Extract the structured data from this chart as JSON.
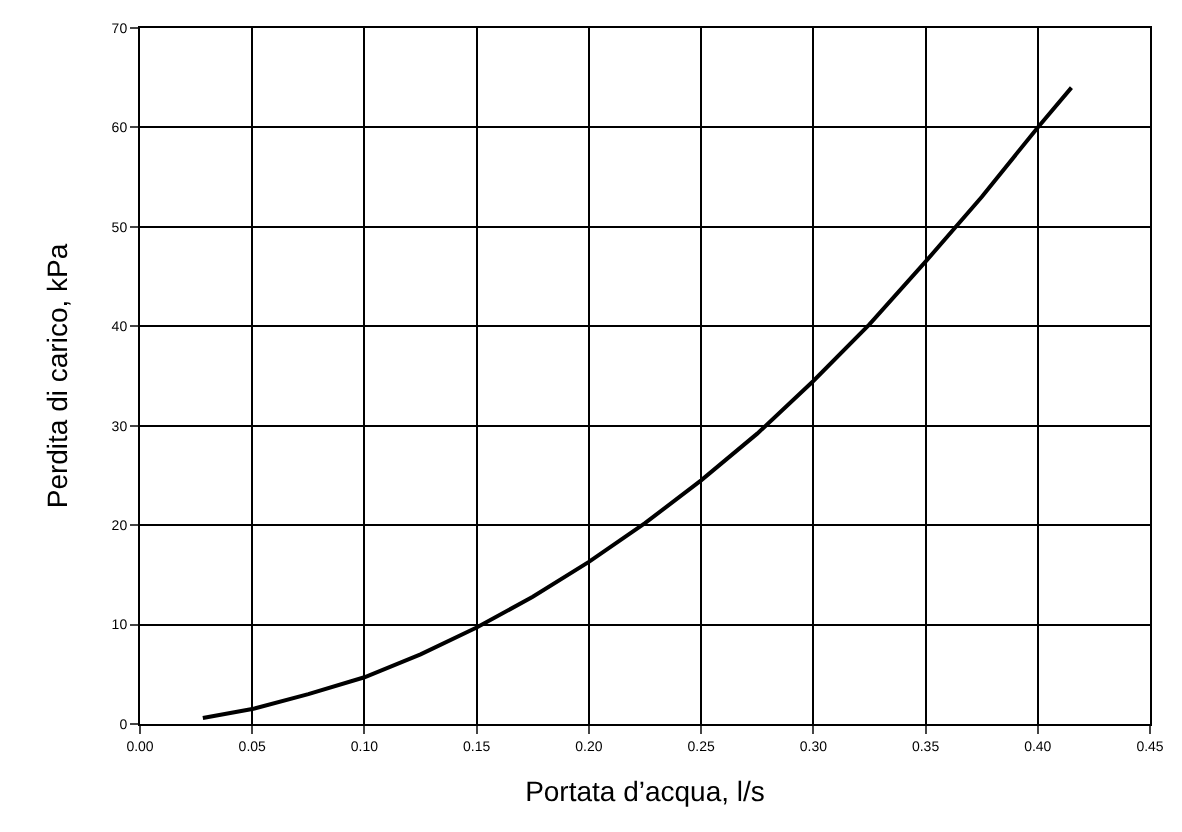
{
  "chart_data": {
    "type": "line",
    "xlabel": "Portata d’acqua, l/s",
    "ylabel": "Perdita di carico, kPa",
    "x": [
      0.028,
      0.05,
      0.075,
      0.1,
      0.125,
      0.15,
      0.175,
      0.2,
      0.225,
      0.25,
      0.275,
      0.3,
      0.325,
      0.35,
      0.375,
      0.4,
      0.415
    ],
    "series": [
      {
        "color": "#000000",
        "values": [
          0.6,
          1.5,
          3.0,
          4.7,
          7.0,
          9.7,
          12.8,
          16.3,
          20.2,
          24.5,
          29.2,
          34.5,
          40.2,
          46.5,
          53.0,
          60.0,
          64.0
        ]
      }
    ],
    "xlim": [
      0,
      0.45
    ],
    "xticks": [
      {
        "value": 0,
        "label": "0.00"
      },
      {
        "value": 0.05,
        "label": "0.05"
      },
      {
        "value": 0.1,
        "label": "0.10"
      },
      {
        "value": 0.15,
        "label": "0.15"
      },
      {
        "value": 0.2,
        "label": "0.20"
      },
      {
        "value": 0.25,
        "label": "0.25"
      },
      {
        "value": 0.3,
        "label": "0.30"
      },
      {
        "value": 0.35,
        "label": "0.35"
      },
      {
        "value": 0.4,
        "label": "0.40"
      },
      {
        "value": 0.45,
        "label": "0.45"
      }
    ],
    "ylim": [
      0,
      70
    ],
    "yticks": [
      0,
      10,
      20,
      30,
      40,
      50,
      60,
      70
    ],
    "grid": true,
    "marker": "none",
    "line_style": "solid"
  }
}
